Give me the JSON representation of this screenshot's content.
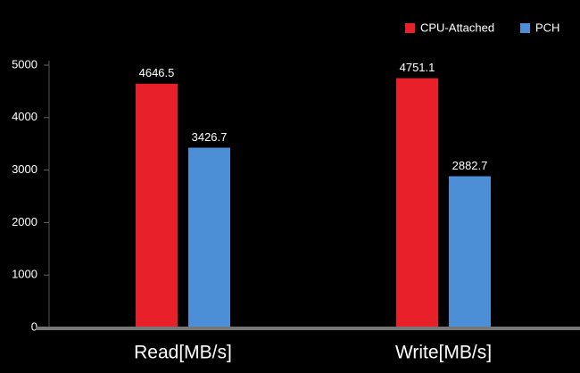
{
  "chart_data": {
    "type": "bar",
    "categories": [
      "Read[MB/s]",
      "Write[MB/s]"
    ],
    "series": [
      {
        "name": "CPU-Attached",
        "color": "#e8202a",
        "values": [
          4646.5,
          4751.1
        ]
      },
      {
        "name": "PCH",
        "color": "#4d8fd6",
        "values": [
          3426.7,
          2882.7
        ]
      }
    ],
    "ylim": [
      0,
      5000
    ],
    "yticks": [
      0,
      1000,
      2000,
      3000,
      4000,
      5000
    ],
    "legend": "top-right"
  }
}
